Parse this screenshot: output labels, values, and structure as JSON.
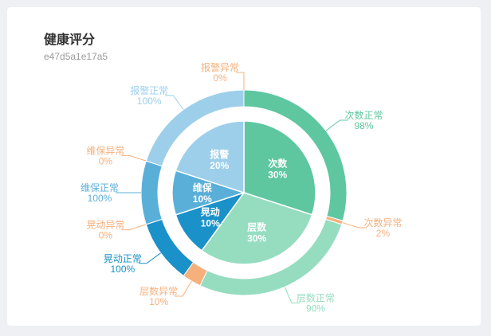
{
  "card": {
    "title": "健康评分",
    "subtitle": "e47d5a1e17a5"
  },
  "chart_data": {
    "type": "pie",
    "inner": {
      "slices": [
        {
          "label": "次数",
          "value": 30,
          "display": "30%",
          "color": "#5ec7a0"
        },
        {
          "label": "层数",
          "value": 30,
          "display": "30%",
          "color": "#96ddc0"
        },
        {
          "label": "晃动",
          "value": 10,
          "display": "10%",
          "color": "#1a91c9"
        },
        {
          "label": "维保",
          "value": 10,
          "display": "10%",
          "color": "#5aafd9"
        },
        {
          "label": "报警",
          "value": 20,
          "display": "20%",
          "color": "#9dcfeb"
        }
      ]
    },
    "outer": {
      "slices": [
        {
          "label": "次数正常",
          "value": 98,
          "display": "98%",
          "color": "#5ec7a0",
          "category": "次数"
        },
        {
          "label": "次数异常",
          "value": 2,
          "display": "2%",
          "color": "#f6b07c",
          "category": "次数"
        },
        {
          "label": "层数正常",
          "value": 90,
          "display": "90%",
          "color": "#96ddc0",
          "category": "层数"
        },
        {
          "label": "层数异常",
          "value": 10,
          "display": "10%",
          "color": "#f6b07c",
          "category": "层数"
        },
        {
          "label": "晃动正常",
          "value": 100,
          "display": "100%",
          "color": "#1a91c9",
          "category": "晃动"
        },
        {
          "label": "晃动异常",
          "value": 0,
          "display": "0%",
          "color": "#f6b07c",
          "category": "晃动"
        },
        {
          "label": "维保正常",
          "value": 100,
          "display": "100%",
          "color": "#5aafd9",
          "category": "维保"
        },
        {
          "label": "维保异常",
          "value": 0,
          "display": "0%",
          "color": "#f6b07c",
          "category": "维保"
        },
        {
          "label": "报警正常",
          "value": 100,
          "display": "100%",
          "color": "#9dcfeb",
          "category": "报警"
        },
        {
          "label": "报警异常",
          "value": 0,
          "display": "0%",
          "color": "#f6b07c",
          "category": "报警"
        }
      ]
    }
  }
}
